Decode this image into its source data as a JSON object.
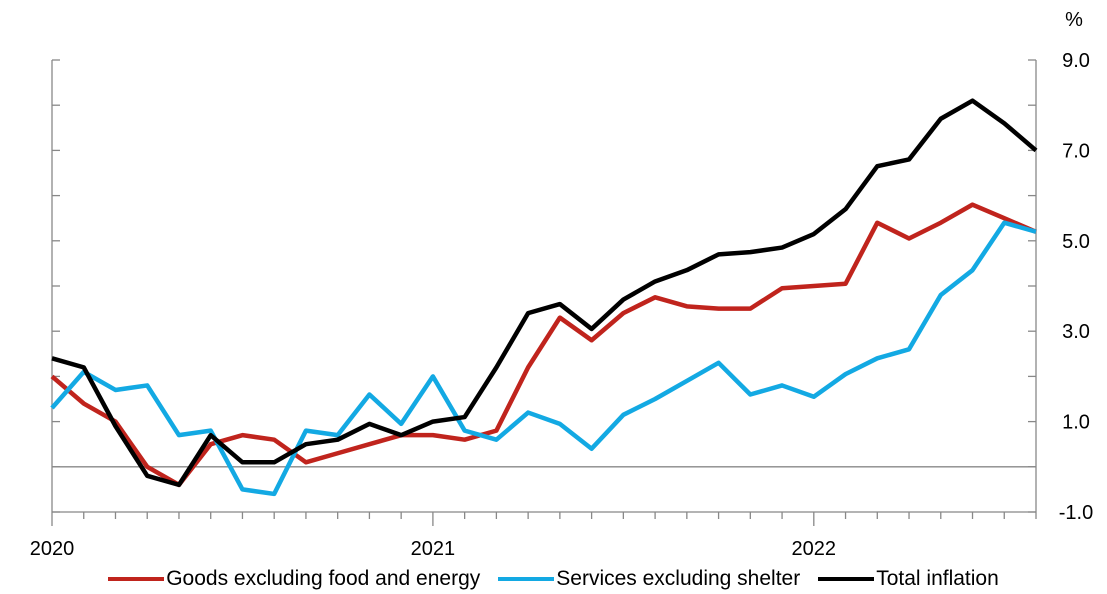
{
  "chart_data": {
    "type": "line",
    "title": "",
    "xlabel": "",
    "ylabel": "%",
    "ylim": [
      -1.0,
      9.0
    ],
    "yticks_labeled": [
      "9.0",
      "7.0",
      "5.0",
      "3.0",
      "1.0",
      "-1.0"
    ],
    "yticks_labeled_values": [
      9,
      7,
      5,
      3,
      1,
      -1
    ],
    "yticks_minor_values": [
      8,
      6,
      4,
      2,
      0
    ],
    "y_axis_side": "right",
    "zero_line": true,
    "x_start_year": 2020,
    "months": 31,
    "xtick_labels": [
      "2020",
      "2021",
      "2022"
    ],
    "xtick_label_month_index": [
      0,
      12,
      24
    ],
    "legend_position": "bottom",
    "series": [
      {
        "name": "Goods excluding food and energy",
        "color": "#c0241d",
        "values": [
          2.0,
          1.4,
          1.0,
          0.0,
          -0.4,
          0.5,
          0.7,
          0.6,
          0.1,
          0.3,
          0.5,
          0.7,
          0.7,
          0.6,
          0.8,
          2.2,
          3.3,
          2.8,
          3.4,
          3.75,
          3.55,
          3.5,
          3.5,
          3.95,
          4.0,
          4.05,
          5.4,
          5.05,
          5.4,
          5.8,
          5.5,
          5.2
        ]
      },
      {
        "name": "Services excluding shelter",
        "color": "#13a9e3",
        "values": [
          1.3,
          2.1,
          1.7,
          1.8,
          0.7,
          0.8,
          -0.5,
          -0.6,
          0.8,
          0.7,
          1.6,
          0.95,
          2.0,
          0.8,
          0.6,
          1.2,
          0.95,
          0.4,
          1.15,
          1.5,
          1.9,
          2.3,
          1.6,
          1.8,
          1.55,
          2.05,
          2.4,
          2.6,
          3.8,
          4.35,
          5.4,
          5.2
        ]
      },
      {
        "name": "Total inflation",
        "color": "#000000",
        "values": [
          2.4,
          2.2,
          0.9,
          -0.2,
          -0.4,
          0.7,
          0.1,
          0.1,
          0.5,
          0.6,
          0.95,
          0.7,
          1.0,
          1.1,
          2.2,
          3.4,
          3.6,
          3.05,
          3.7,
          4.1,
          4.35,
          4.7,
          4.75,
          4.85,
          5.15,
          5.7,
          6.65,
          6.8,
          7.7,
          8.1,
          7.6,
          7.0
        ]
      }
    ]
  }
}
